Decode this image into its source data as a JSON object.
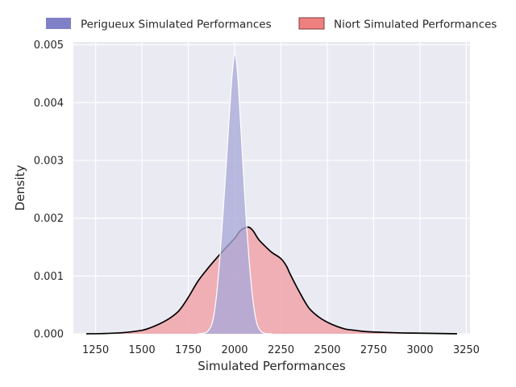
{
  "chart_data": {
    "type": "area",
    "title": "",
    "xlabel": "Simulated Performances",
    "ylabel": "Density",
    "xlim": [
      1130,
      3270
    ],
    "ylim": [
      0,
      0.00505
    ],
    "x_ticks": [
      1250,
      1500,
      1750,
      2000,
      2250,
      2500,
      2750,
      3000,
      3250
    ],
    "x_tick_labels": [
      "1250",
      "1500",
      "1750",
      "2000",
      "2250",
      "2500",
      "2750",
      "3000",
      "3250"
    ],
    "y_ticks": [
      0,
      0.001,
      0.002,
      0.003,
      0.004,
      0.005
    ],
    "y_tick_labels": [
      "0.000",
      "0.001",
      "0.002",
      "0.003",
      "0.004",
      "0.005"
    ],
    "grid": true,
    "legend_position": "top-center",
    "series": [
      {
        "name": "Perigueux Simulated Performances",
        "color": "#8080c8",
        "fill_color": "#a9a9d8",
        "line_color": "#ffffff",
        "x": [
          1800,
          1850,
          1880,
          1900,
          1920,
          1940,
          1960,
          1980,
          1990,
          2000,
          2010,
          2020,
          2040,
          2060,
          2080,
          2100,
          2120,
          2140,
          2160,
          2180,
          2200
        ],
        "y": [
          0.0,
          3e-05,
          0.0002,
          0.0006,
          0.0013,
          0.0022,
          0.0032,
          0.0042,
          0.0046,
          0.00485,
          0.0047,
          0.0043,
          0.0032,
          0.0021,
          0.0012,
          0.00055,
          0.00018,
          5e-05,
          1e-05,
          0.0,
          0.0
        ]
      },
      {
        "name": "Niort Simulated Performances",
        "color": "#f08080",
        "fill_color": "#f0a8ae",
        "line_color": "#000000",
        "x": [
          1200,
          1300,
          1400,
          1500,
          1550,
          1600,
          1650,
          1700,
          1750,
          1800,
          1850,
          1900,
          1950,
          2000,
          2030,
          2060,
          2080,
          2100,
          2130,
          2160,
          2200,
          2250,
          2280,
          2300,
          2350,
          2400,
          2450,
          2500,
          2550,
          2600,
          2650,
          2700,
          2800,
          2900,
          3000,
          3100,
          3200
        ],
        "y": [
          0.0,
          5e-06,
          2e-05,
          6e-05,
          0.00011,
          0.00018,
          0.00027,
          0.0004,
          0.00063,
          0.0009,
          0.00111,
          0.0013,
          0.00148,
          0.00165,
          0.00178,
          0.00184,
          0.00184,
          0.00178,
          0.00163,
          0.00153,
          0.00141,
          0.0013,
          0.00117,
          0.00103,
          0.00072,
          0.00045,
          0.0003,
          0.0002,
          0.00013,
          8e-05,
          6e-05,
          4e-05,
          2.5e-05,
          1.5e-05,
          1e-05,
          5e-06,
          0.0
        ]
      }
    ]
  }
}
